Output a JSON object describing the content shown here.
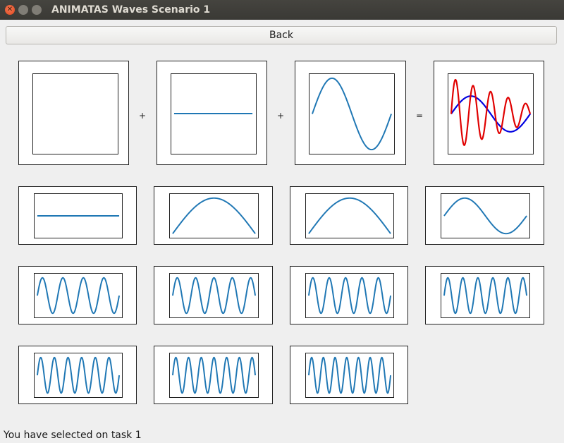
{
  "window": {
    "title": "ANIMATAS Waves Scenario 1",
    "controls": [
      "close",
      "minimize",
      "maximize"
    ]
  },
  "back_button": {
    "label": "Back"
  },
  "equation": {
    "operators": [
      "+",
      "+",
      "="
    ],
    "panels": [
      {
        "content": "empty"
      },
      {
        "content": "flat-line"
      },
      {
        "content": "sine-one-cycle"
      },
      {
        "content": "sum-result",
        "series_colors": [
          "#e00000",
          "#0000e0"
        ]
      }
    ]
  },
  "wave_options": {
    "line_color": "#1f77b4",
    "rows": [
      [
        {
          "cycles": 0
        },
        {
          "cycles": 0.5
        },
        {
          "cycles": 0.5
        },
        {
          "cycles": 1
        }
      ],
      [
        {
          "cycles": 4
        },
        {
          "cycles": 4.5
        },
        {
          "cycles": 5
        },
        {
          "cycles": 5.5
        }
      ],
      [
        {
          "cycles": 6
        },
        {
          "cycles": 6.5
        },
        {
          "cycles": 7
        }
      ]
    ]
  },
  "status": {
    "text": "You have selected on task 1"
  }
}
